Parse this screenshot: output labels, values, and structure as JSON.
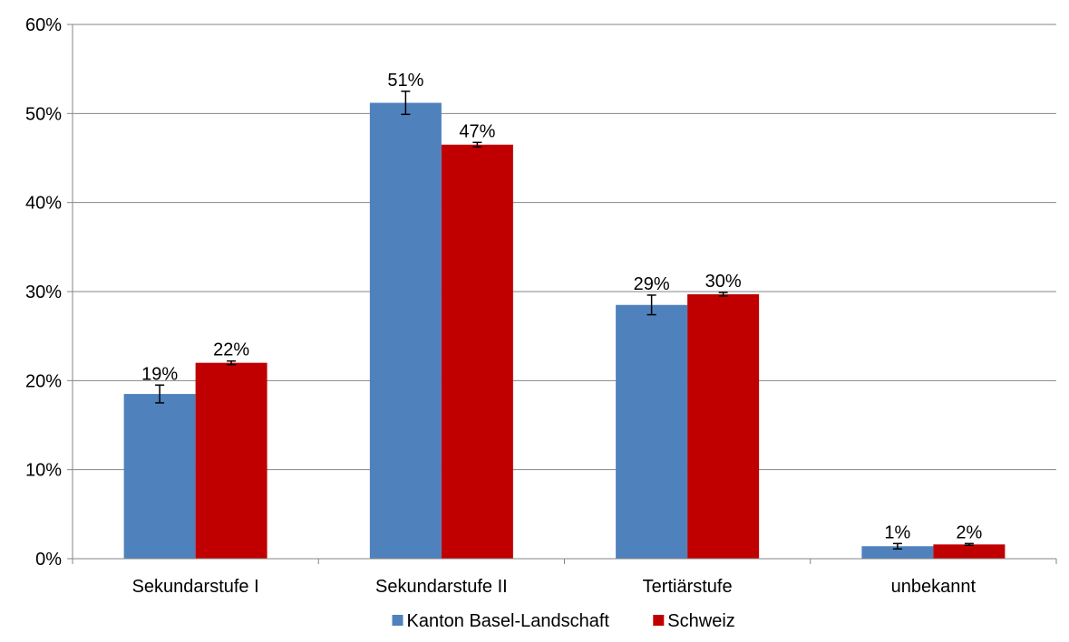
{
  "chart_data": {
    "type": "bar",
    "categories": [
      "Sekundarstufe I",
      "Sekundarstufe II",
      "Tertiärstufe",
      "unbekannt"
    ],
    "series": [
      {
        "name": "Kanton Basel-Landschaft",
        "color": "#4F81BD",
        "values": [
          18.5,
          51.2,
          28.5,
          1.4
        ],
        "labels": [
          "19%",
          "51%",
          "29%",
          "1%"
        ],
        "error": [
          1.0,
          1.3,
          1.1,
          0.3
        ]
      },
      {
        "name": "Schweiz",
        "color": "#C00000",
        "values": [
          22.0,
          46.5,
          29.7,
          1.6
        ],
        "labels": [
          "22%",
          "47%",
          "30%",
          "2%"
        ],
        "error": [
          0.2,
          0.25,
          0.2,
          0.1
        ]
      }
    ],
    "yticks": [
      "0%",
      "10%",
      "20%",
      "30%",
      "40%",
      "50%",
      "60%"
    ],
    "ylim": [
      0,
      60
    ],
    "grid": true,
    "legend": "bottom"
  }
}
